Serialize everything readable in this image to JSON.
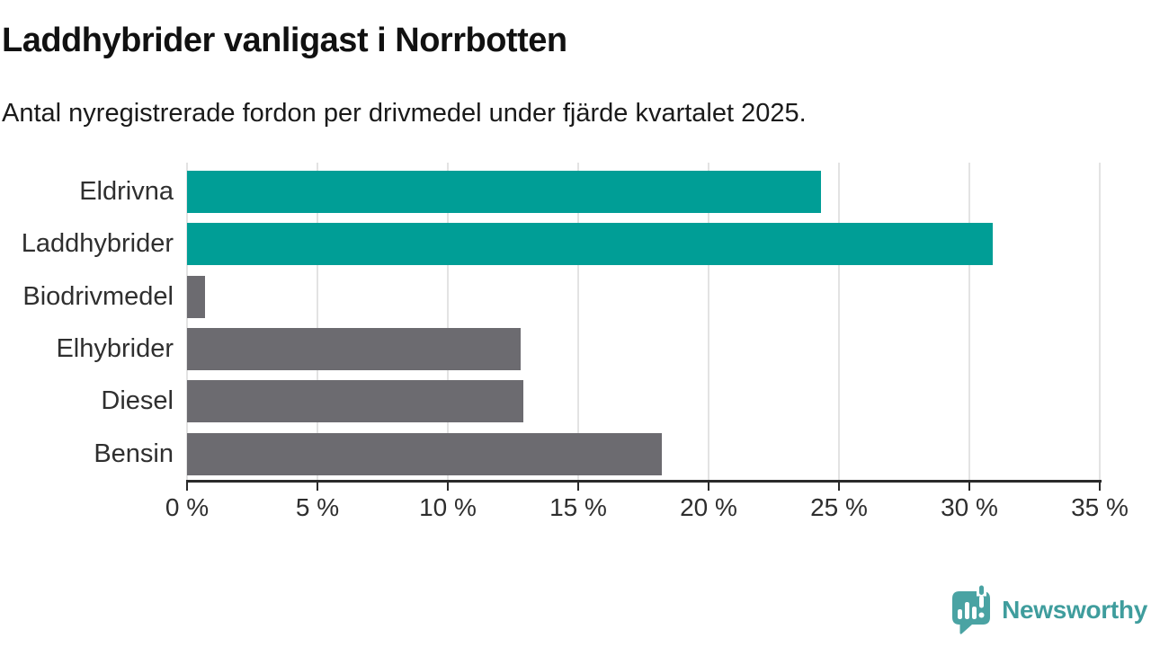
{
  "header": {
    "title": "Laddhybrider vanligast i Norrbotten",
    "subtitle": "Antal nyregistrerade fordon per drivmedel under fjärde kvartalet 2025."
  },
  "chart_data": {
    "type": "bar",
    "orientation": "horizontal",
    "title": "Laddhybrider vanligast i Norrbotten",
    "subtitle": "Antal nyregistrerade fordon per drivmedel under fjärde kvartalet 2025.",
    "categories": [
      "Eldrivna",
      "Laddhybrider",
      "Biodrivmedel",
      "Elhybrider",
      "Diesel",
      "Bensin"
    ],
    "values": [
      24.3,
      30.9,
      0.7,
      12.8,
      12.9,
      18.2
    ],
    "unit": "%",
    "bar_colors": [
      "#009e96",
      "#009e96",
      "#6c6b70",
      "#6c6b70",
      "#6c6b70",
      "#6c6b70"
    ],
    "highlight_color": "#009e96",
    "default_color": "#6c6b70",
    "xlabel": "",
    "ylabel": "",
    "xlim": [
      0,
      35
    ],
    "x_ticks": [
      0,
      5,
      10,
      15,
      20,
      25,
      30,
      35
    ],
    "x_tick_labels": [
      "0 %",
      "5 %",
      "10 %",
      "15 %",
      "20 %",
      "25 %",
      "30 %",
      "35 %"
    ],
    "grid": true,
    "legend": false
  },
  "colors": {
    "grid": "#e3e3e3",
    "axis": "#2a2a2a",
    "category_text": "#2f2f2f",
    "tick_text": "#2e2e2e",
    "title_text": "#111111"
  },
  "branding": {
    "name": "Newsworthy",
    "icon": "bar-chart-speech-bubble-icon",
    "icon_color": "#4aa3a3",
    "text_color": "#3f9d9d"
  }
}
